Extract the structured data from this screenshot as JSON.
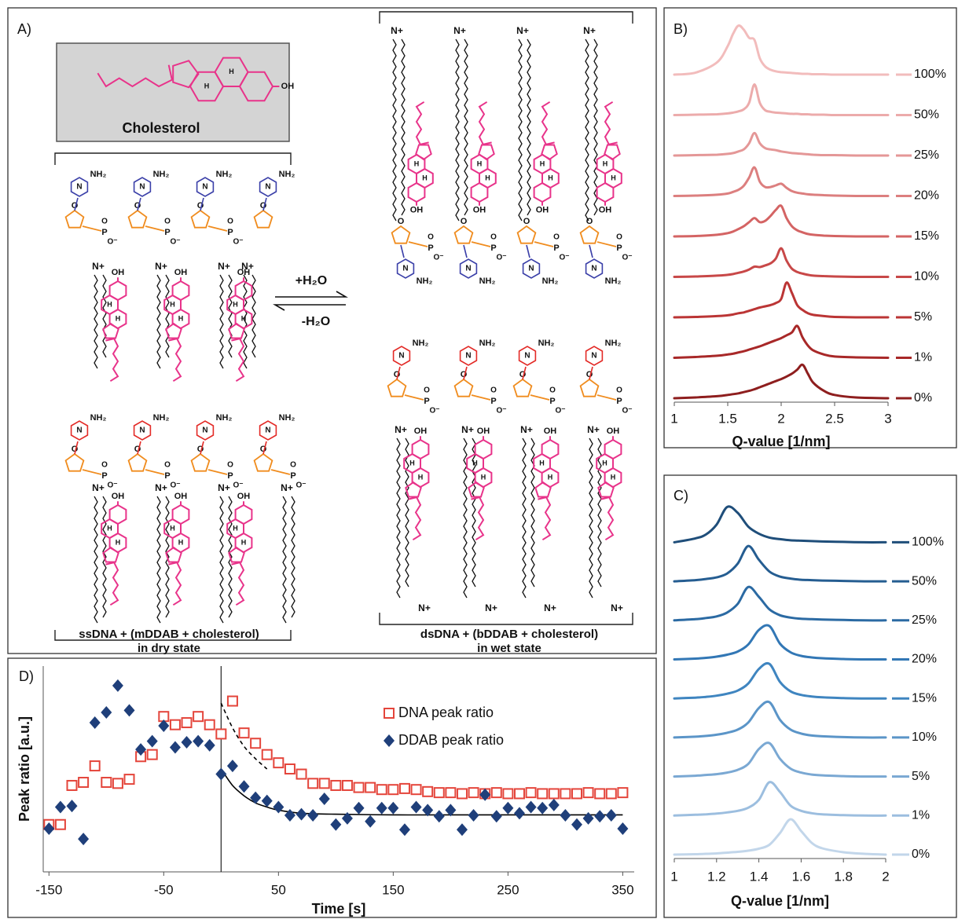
{
  "diagram": {
    "panel_label": "A)",
    "molecule": "Cholesterol",
    "forward": "+H₂O",
    "reverse": "-H₂O",
    "left_caption": [
      "ssDNA + (mDDAB + cholesterol)",
      "in dry state"
    ],
    "right_caption": [
      "dsDNA + (bDDAB + cholesterol)",
      "in wet state"
    ],
    "labels": {
      "ammonium": "N+",
      "hydroxyl": "OH",
      "amine": "NH₂",
      "oxygen": "O",
      "anion": "O⁻",
      "hydrogen": "H",
      "phosphorus": "P",
      "nitrogen": "N"
    }
  },
  "chart_data": [
    {
      "type": "line",
      "panel_label": "B)",
      "waterfall": true,
      "x_label": "Q-value [1/nm]",
      "xlim": [
        1,
        3
      ],
      "xticks": [
        1,
        1.5,
        2,
        2.5,
        3
      ],
      "x": [
        1,
        1.2,
        1.4,
        1.5,
        1.55,
        1.6,
        1.65,
        1.7,
        1.75,
        1.8,
        1.85,
        1.9,
        1.95,
        2,
        2.05,
        2.1,
        2.15,
        2.2,
        2.25,
        2.3,
        2.4,
        2.5,
        2.7,
        3
      ],
      "series": [
        {
          "name": "100%",
          "color": "#f2bcbc",
          "values": [
            0,
            0.05,
            0.3,
            0.7,
            1.0,
            1.2,
            1.1,
            0.9,
            0.85,
            0.4,
            0.2,
            0.12,
            0.08,
            0.06,
            0.05,
            0.04,
            0.03,
            0.02,
            0.02,
            0.01,
            0.01,
            0,
            0,
            0
          ]
        },
        {
          "name": "50%",
          "color": "#ecabab",
          "values": [
            0,
            0.01,
            0.02,
            0.04,
            0.06,
            0.09,
            0.14,
            0.3,
            0.75,
            0.3,
            0.12,
            0.08,
            0.06,
            0.05,
            0.04,
            0.03,
            0.03,
            0.02,
            0.02,
            0.01,
            0.01,
            0,
            0,
            0
          ]
        },
        {
          "name": "25%",
          "color": "#e49797",
          "values": [
            0,
            0.01,
            0.02,
            0.04,
            0.06,
            0.1,
            0.15,
            0.3,
            0.55,
            0.3,
            0.18,
            0.15,
            0.13,
            0.1,
            0.08,
            0.06,
            0.05,
            0.04,
            0.03,
            0.02,
            0.01,
            0.01,
            0,
            0
          ]
        },
        {
          "name": "20%",
          "color": "#dc7f7f",
          "values": [
            0,
            0.01,
            0.03,
            0.06,
            0.1,
            0.15,
            0.25,
            0.45,
            0.7,
            0.35,
            0.22,
            0.22,
            0.26,
            0.3,
            0.2,
            0.12,
            0.08,
            0.06,
            0.04,
            0.03,
            0.02,
            0.01,
            0,
            0
          ]
        },
        {
          "name": "15%",
          "color": "#d46464",
          "values": [
            0,
            0.01,
            0.04,
            0.08,
            0.12,
            0.18,
            0.25,
            0.35,
            0.45,
            0.35,
            0.38,
            0.5,
            0.65,
            0.75,
            0.45,
            0.25,
            0.15,
            0.1,
            0.06,
            0.04,
            0.02,
            0.01,
            0,
            0
          ]
        },
        {
          "name": "10%",
          "color": "#c84848",
          "values": [
            0,
            0.01,
            0.03,
            0.05,
            0.07,
            0.1,
            0.13,
            0.18,
            0.25,
            0.24,
            0.28,
            0.33,
            0.45,
            0.7,
            0.4,
            0.2,
            0.12,
            0.08,
            0.05,
            0.03,
            0.02,
            0.01,
            0,
            0
          ]
        },
        {
          "name": "5%",
          "color": "#bb3535",
          "values": [
            0,
            0.01,
            0.03,
            0.05,
            0.07,
            0.1,
            0.12,
            0.16,
            0.2,
            0.24,
            0.27,
            0.3,
            0.35,
            0.45,
            0.85,
            0.6,
            0.3,
            0.18,
            0.1,
            0.06,
            0.03,
            0.01,
            0,
            0
          ]
        },
        {
          "name": "1%",
          "color": "#a82828",
          "values": [
            0,
            0.02,
            0.05,
            0.08,
            0.1,
            0.13,
            0.16,
            0.2,
            0.24,
            0.28,
            0.33,
            0.38,
            0.43,
            0.48,
            0.55,
            0.62,
            0.78,
            0.5,
            0.3,
            0.18,
            0.08,
            0.03,
            0.01,
            0
          ]
        },
        {
          "name": "0%",
          "color": "#8e1e1e",
          "values": [
            0,
            0.02,
            0.05,
            0.08,
            0.1,
            0.12,
            0.15,
            0.18,
            0.22,
            0.27,
            0.32,
            0.37,
            0.42,
            0.47,
            0.53,
            0.6,
            0.7,
            0.82,
            0.6,
            0.38,
            0.18,
            0.08,
            0.02,
            0
          ]
        }
      ]
    },
    {
      "type": "line",
      "panel_label": "C)",
      "waterfall": true,
      "x_label": "Q-value [1/nm]",
      "xlim": [
        1,
        2
      ],
      "xticks": [
        1,
        1.2,
        1.4,
        1.6,
        1.8,
        2
      ],
      "x": [
        1,
        1.1,
        1.15,
        1.2,
        1.25,
        1.3,
        1.35,
        1.4,
        1.45,
        1.5,
        1.55,
        1.6,
        1.65,
        1.7,
        1.8,
        1.9,
        2
      ],
      "series": [
        {
          "name": "100%",
          "color": "#1f4e7a",
          "values": [
            0,
            0.1,
            0.2,
            0.45,
            0.9,
            0.75,
            0.4,
            0.22,
            0.12,
            0.08,
            0.05,
            0.04,
            0.03,
            0.02,
            0.01,
            0,
            0
          ]
        },
        {
          "name": "50%",
          "color": "#255d91",
          "values": [
            0,
            0.03,
            0.06,
            0.1,
            0.2,
            0.45,
            0.9,
            0.55,
            0.25,
            0.12,
            0.07,
            0.04,
            0.03,
            0.02,
            0.01,
            0,
            0
          ]
        },
        {
          "name": "25%",
          "color": "#2b6aa3",
          "values": [
            0,
            0.03,
            0.06,
            0.1,
            0.2,
            0.42,
            0.85,
            0.6,
            0.28,
            0.13,
            0.07,
            0.04,
            0.03,
            0.02,
            0.01,
            0,
            0
          ]
        },
        {
          "name": "20%",
          "color": "#3277b5",
          "values": [
            0,
            0.02,
            0.04,
            0.07,
            0.12,
            0.2,
            0.38,
            0.75,
            0.85,
            0.4,
            0.18,
            0.09,
            0.05,
            0.03,
            0.01,
            0,
            0
          ]
        },
        {
          "name": "15%",
          "color": "#3f85c0",
          "values": [
            0,
            0.02,
            0.04,
            0.07,
            0.12,
            0.2,
            0.38,
            0.75,
            0.88,
            0.42,
            0.18,
            0.09,
            0.05,
            0.03,
            0.01,
            0,
            0
          ]
        },
        {
          "name": "10%",
          "color": "#5b95c8",
          "values": [
            0,
            0.02,
            0.04,
            0.07,
            0.12,
            0.2,
            0.38,
            0.75,
            0.9,
            0.45,
            0.2,
            0.1,
            0.05,
            0.03,
            0.01,
            0,
            0
          ]
        },
        {
          "name": "5%",
          "color": "#7aa8d3",
          "values": [
            0,
            0.02,
            0.04,
            0.06,
            0.1,
            0.17,
            0.32,
            0.7,
            0.85,
            0.45,
            0.2,
            0.1,
            0.05,
            0.03,
            0.01,
            0,
            0
          ]
        },
        {
          "name": "1%",
          "color": "#9cbedf",
          "values": [
            0,
            0.02,
            0.03,
            0.05,
            0.08,
            0.12,
            0.2,
            0.4,
            0.85,
            0.6,
            0.25,
            0.12,
            0.06,
            0.03,
            0.01,
            0,
            0
          ]
        },
        {
          "name": "0%",
          "color": "#c2d6ea",
          "values": [
            0,
            0.01,
            0.02,
            0.03,
            0.05,
            0.07,
            0.1,
            0.15,
            0.25,
            0.55,
            0.9,
            0.6,
            0.3,
            0.16,
            0.06,
            0.02,
            0
          ]
        }
      ]
    },
    {
      "type": "scatter",
      "panel_label": "D)",
      "x_label": "Time [s]",
      "y_label": "Peak ratio [a.u.]",
      "xlim": [
        -155,
        360
      ],
      "xticks": [
        -150,
        -50,
        50,
        150,
        250,
        350
      ],
      "ylim": [
        0,
        10
      ],
      "legend": "upper right",
      "vlines": [
        0
      ],
      "series": [
        {
          "name": "DNA peak ratio",
          "color": "#e4453b",
          "marker": "square",
          "x": [
            -150,
            -140,
            -130,
            -120,
            -110,
            -100,
            -90,
            -80,
            -70,
            -60,
            -50,
            -40,
            -30,
            -20,
            -10,
            0,
            10,
            20,
            30,
            40,
            50,
            60,
            70,
            80,
            90,
            100,
            110,
            120,
            130,
            140,
            150,
            160,
            170,
            180,
            190,
            200,
            210,
            220,
            230,
            240,
            250,
            260,
            270,
            280,
            290,
            300,
            310,
            320,
            330,
            340,
            350
          ],
          "values": [
            2.3,
            2.3,
            4.2,
            4.35,
            5.15,
            4.35,
            4.3,
            4.5,
            5.6,
            5.7,
            7.55,
            7.15,
            7.25,
            7.55,
            7.15,
            6.7,
            8.3,
            6.75,
            6.25,
            5.7,
            5.3,
            5.0,
            4.75,
            4.3,
            4.3,
            4.2,
            4.2,
            4.1,
            4.1,
            4.0,
            4.0,
            4.05,
            4.0,
            3.9,
            3.85,
            3.85,
            3.8,
            3.85,
            3.8,
            3.85,
            3.8,
            3.8,
            3.85,
            3.8,
            3.8,
            3.8,
            3.8,
            3.85,
            3.8,
            3.8,
            3.85
          ]
        },
        {
          "name": "DDAB peak ratio",
          "color": "#1f3f7a",
          "marker": "diamond",
          "x": [
            -150,
            -140,
            -130,
            -120,
            -110,
            -100,
            -90,
            -80,
            -70,
            -60,
            -50,
            -40,
            -30,
            -20,
            -10,
            0,
            10,
            20,
            30,
            40,
            50,
            60,
            70,
            80,
            90,
            100,
            110,
            120,
            130,
            140,
            150,
            160,
            170,
            180,
            190,
            200,
            210,
            220,
            230,
            240,
            250,
            260,
            270,
            280,
            290,
            300,
            310,
            320,
            330,
            340,
            350
          ],
          "values": [
            2.1,
            3.15,
            3.2,
            1.6,
            7.25,
            7.75,
            9.05,
            7.85,
            5.95,
            6.35,
            7.1,
            6.05,
            6.3,
            6.35,
            6.15,
            4.75,
            5.15,
            4.15,
            3.6,
            3.45,
            3.15,
            2.75,
            2.8,
            2.75,
            3.55,
            2.3,
            2.6,
            3.1,
            2.45,
            3.1,
            3.1,
            2.05,
            3.15,
            3.0,
            2.7,
            3.0,
            2.05,
            2.75,
            3.75,
            2.7,
            3.1,
            2.85,
            3.15,
            3.1,
            3.25,
            2.75,
            2.3,
            2.6,
            2.7,
            2.75,
            2.1
          ]
        }
      ],
      "fits": [
        {
          "color": "#000000",
          "style": "dashed",
          "x": [
            0,
            10,
            20,
            30,
            40
          ],
          "values": [
            8.2,
            7.0,
            6.1,
            5.5,
            5.0
          ]
        },
        {
          "color": "#000000",
          "style": "solid",
          "x": [
            0,
            10,
            20,
            30,
            40,
            50,
            70,
            100,
            150,
            200,
            350
          ],
          "values": [
            5.0,
            4.2,
            3.7,
            3.35,
            3.15,
            3.0,
            2.85,
            2.8,
            2.77,
            2.77,
            2.77
          ]
        }
      ]
    }
  ]
}
